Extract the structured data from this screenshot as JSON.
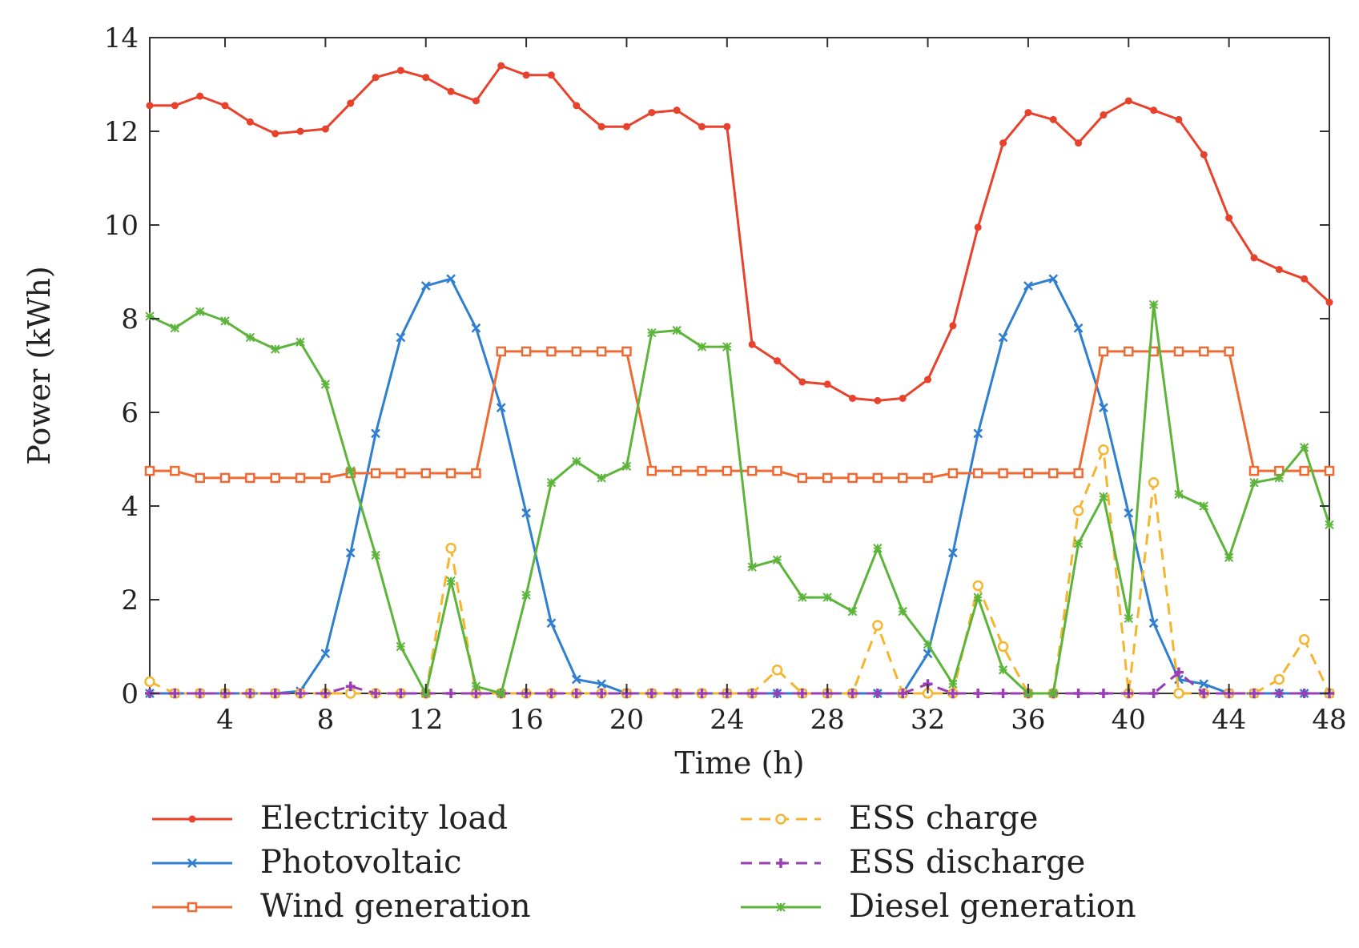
{
  "chart_data": {
    "type": "line",
    "title": "",
    "xlabel": "Time (h)",
    "ylabel": "Power (kWh)",
    "xlim": [
      1,
      48
    ],
    "ylim": [
      0,
      14
    ],
    "xticks": [
      4,
      8,
      12,
      16,
      20,
      24,
      28,
      32,
      36,
      40,
      44,
      48
    ],
    "yticks": [
      0,
      2,
      4,
      6,
      8,
      10,
      12,
      14
    ],
    "legend_position": "bottom",
    "series": [
      {
        "name": "Electricity load",
        "color": "#e8412c",
        "dash": "solid",
        "marker": "dot",
        "values": [
          12.55,
          12.55,
          12.75,
          12.55,
          12.2,
          11.95,
          12.0,
          12.05,
          12.6,
          13.15,
          13.3,
          13.15,
          12.85,
          12.65,
          13.4,
          13.2,
          13.2,
          12.55,
          12.1,
          12.1,
          12.4,
          12.45,
          12.1,
          12.1,
          7.45,
          7.1,
          6.65,
          6.6,
          6.3,
          6.25,
          6.3,
          6.7,
          7.85,
          9.95,
          11.75,
          12.4,
          12.25,
          11.75,
          12.35,
          12.65,
          12.45,
          12.25,
          11.5,
          10.15,
          9.3,
          9.05,
          8.85,
          8.35
        ]
      },
      {
        "name": "Photovoltaic",
        "color": "#2f7fd0",
        "dash": "solid",
        "marker": "x",
        "values": [
          0,
          0,
          0,
          0,
          0,
          0,
          0.05,
          0.85,
          3.0,
          5.55,
          7.6,
          8.7,
          8.85,
          7.8,
          6.1,
          3.85,
          1.5,
          0.3,
          0.2,
          0,
          0,
          0,
          0,
          0,
          0,
          0,
          0,
          0,
          0,
          0,
          0,
          0.85,
          3.0,
          5.55,
          7.6,
          8.7,
          8.85,
          7.8,
          6.1,
          3.85,
          1.5,
          0.3,
          0.2,
          0,
          0,
          0,
          0,
          0
        ]
      },
      {
        "name": "Wind generation",
        "color": "#ef6a32",
        "dash": "solid",
        "marker": "square",
        "values": [
          4.75,
          4.75,
          4.6,
          4.6,
          4.6,
          4.6,
          4.6,
          4.6,
          4.7,
          4.7,
          4.7,
          4.7,
          4.7,
          4.7,
          7.3,
          7.3,
          7.3,
          7.3,
          7.3,
          7.3,
          4.75,
          4.75,
          4.75,
          4.75,
          4.75,
          4.75,
          4.6,
          4.6,
          4.6,
          4.6,
          4.6,
          4.6,
          4.7,
          4.7,
          4.7,
          4.7,
          4.7,
          4.7,
          7.3,
          7.3,
          7.3,
          7.3,
          7.3,
          7.3,
          4.75,
          4.75,
          4.75,
          4.75
        ]
      },
      {
        "name": "ESS charge",
        "color": "#f5b52e",
        "dash": "dashed",
        "marker": "circle",
        "values": [
          0.25,
          0,
          0,
          0,
          0,
          0,
          0,
          0,
          0,
          0,
          0,
          0,
          3.1,
          0,
          0,
          0,
          0,
          0,
          0,
          0,
          0,
          0,
          0,
          0,
          0,
          0.5,
          0,
          0,
          0,
          1.45,
          0,
          0,
          0,
          2.3,
          1.0,
          0,
          0,
          3.9,
          5.2,
          0,
          4.5,
          0,
          0,
          0,
          0,
          0.3,
          1.15,
          0
        ]
      },
      {
        "name": "ESS discharge",
        "color": "#9a3fb3",
        "dash": "dashed",
        "marker": "plus",
        "values": [
          0,
          0,
          0,
          0,
          0,
          0,
          0,
          0,
          0.15,
          0,
          0,
          0,
          0,
          0,
          0,
          0,
          0,
          0,
          0,
          0,
          0,
          0,
          0,
          0,
          0,
          0,
          0,
          0,
          0,
          0,
          0,
          0.2,
          0,
          0,
          0,
          0,
          0,
          0,
          0,
          0,
          0,
          0.45,
          0,
          0,
          0,
          0,
          0,
          0
        ]
      },
      {
        "name": "Diesel generation",
        "color": "#5cb53a",
        "dash": "solid",
        "marker": "star",
        "values": [
          8.05,
          7.8,
          8.15,
          7.95,
          7.6,
          7.35,
          7.5,
          6.6,
          4.75,
          2.95,
          1.0,
          0,
          2.4,
          0.15,
          0,
          2.1,
          4.5,
          4.95,
          4.6,
          4.85,
          7.7,
          7.75,
          7.4,
          7.4,
          2.7,
          2.85,
          2.05,
          2.05,
          1.75,
          3.1,
          1.75,
          1.05,
          0.2,
          2.05,
          0.5,
          0,
          0,
          3.2,
          4.2,
          1.6,
          8.3,
          4.25,
          4.0,
          2.9,
          4.5,
          4.6,
          5.25,
          3.6
        ]
      }
    ]
  }
}
